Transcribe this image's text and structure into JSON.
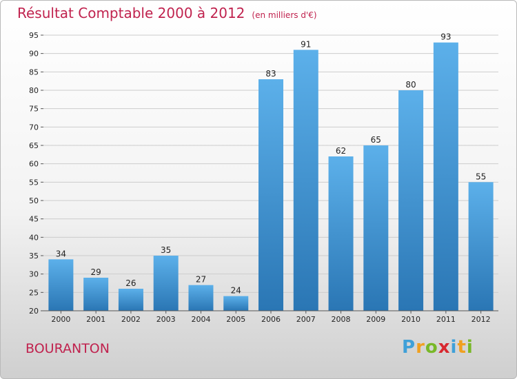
{
  "header": {
    "title": "Résultat Comptable 2000 à 2012",
    "subtitle": "(en milliers d'€)"
  },
  "footer": {
    "place": "BOURANTON",
    "logo_letters": [
      "P",
      "r",
      "o",
      "x",
      "i",
      "t",
      "i"
    ],
    "logo_colors": [
      "#3fa0d8",
      "#f0a020",
      "#78b828",
      "#d8282f",
      "#3fa0d8",
      "#f0a020",
      "#78b828"
    ]
  },
  "colors": {
    "bar_top": "#5cb0ea",
    "bar_bottom": "#2a76b4",
    "grid": "#cccccc",
    "title": "#c0224e"
  },
  "chart_data": {
    "type": "bar",
    "categories": [
      "2000",
      "2001",
      "2002",
      "2003",
      "2004",
      "2005",
      "2006",
      "2007",
      "2008",
      "2009",
      "2010",
      "2011",
      "2012"
    ],
    "values": [
      34,
      29,
      26,
      35,
      27,
      24,
      83,
      91,
      62,
      65,
      80,
      93,
      55
    ],
    "ylim": [
      20,
      95
    ],
    "yticks": [
      20,
      25,
      30,
      35,
      40,
      45,
      50,
      55,
      60,
      65,
      70,
      75,
      80,
      85,
      90,
      95
    ],
    "grid": true,
    "data_labels": true
  }
}
